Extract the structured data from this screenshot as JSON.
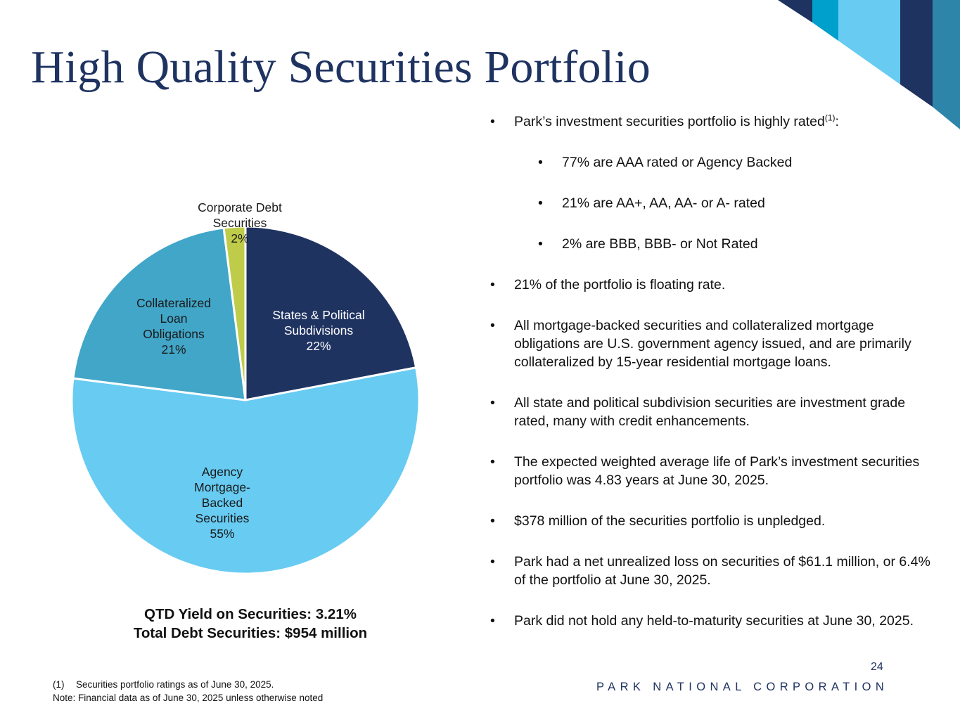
{
  "title": "High Quality Securities Portfolio",
  "chart_data": {
    "type": "pie",
    "title": "",
    "slices": [
      {
        "label_lines": [
          "States & Political",
          "Subdivisions"
        ],
        "percent_label": "22%",
        "value": 22,
        "color": "#1f3361",
        "label_color": "#ffffff"
      },
      {
        "label_lines": [
          "Agency",
          "Mortgage-",
          "Backed",
          "Securities"
        ],
        "percent_label": "55%",
        "value": 55,
        "color": "#67cbf2",
        "label_color": "#1a1a1a"
      },
      {
        "label_lines": [
          "Collateralized",
          "Loan",
          "Obligations"
        ],
        "percent_label": "21%",
        "value": 21,
        "color": "#41a6c8",
        "label_color": "#1a1a1a"
      },
      {
        "label_lines": [
          "Corporate Debt",
          "Securities"
        ],
        "percent_label": "2%",
        "value": 2,
        "color": "#bfcc4a",
        "label_color": "#1a1a1a"
      }
    ]
  },
  "summary": {
    "yield": "QTD Yield on Securities: 3.21%",
    "total": "Total Debt Securities: $954 million"
  },
  "bullets": [
    {
      "text": "Park’s investment securities portfolio is highly rated",
      "sup": "(1)",
      "suffix": ":",
      "level": 1
    },
    {
      "text": "77% are AAA rated or Agency Backed",
      "level": 2
    },
    {
      "text": "21% are AA+, AA, AA- or A- rated",
      "level": 2
    },
    {
      "text": "2% are BBB, BBB- or Not Rated",
      "level": 2
    },
    {
      "text": "21% of the portfolio is floating rate.",
      "level": 1
    },
    {
      "text": "All mortgage-backed securities and collateralized mortgage obligations are U.S. government agency issued, and are primarily collateralized by 15-year residential mortgage loans.",
      "level": 1
    },
    {
      "text": "All state and political subdivision securities are investment grade rated, many with credit enhancements.",
      "level": 1
    },
    {
      "text": "The expected weighted average life of Park’s investment securities portfolio was 4.83 years at June 30, 2025.",
      "level": 1
    },
    {
      "text": "$378 million of the securities portfolio is unpledged.",
      "level": 1
    },
    {
      "text": "Park had a net unrealized loss on securities of $61.1 million, or 6.4% of the portfolio at June 30, 2025.",
      "level": 1
    },
    {
      "text": "Park did not hold any held-to-maturity securities at June 30, 2025.",
      "level": 1
    }
  ],
  "page_number": "24",
  "brand": "PARK NATIONAL CORPORATION",
  "footnotes": [
    {
      "num": "(1)",
      "text": "Securities portfolio ratings as of June 30, 2025."
    },
    {
      "num": "",
      "text": "Note: Financial data as of June 30, 2025 unless otherwise noted"
    }
  ],
  "decor_colors": [
    "#1f3361",
    "#00a0cc",
    "#67cbf2",
    "#2e85aa"
  ]
}
